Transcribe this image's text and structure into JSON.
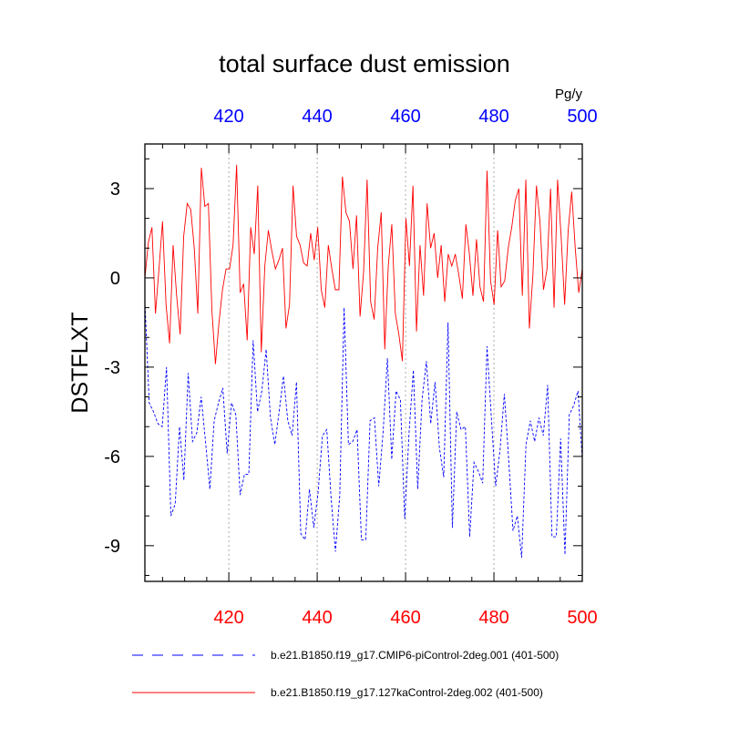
{
  "chart_data": {
    "type": "line",
    "title": "total surface dust emission",
    "ylabel": "DSTFLXT",
    "units": "Pg/y",
    "xlim": [
      401,
      500
    ],
    "ylim": [
      -10.2,
      4.5
    ],
    "x_ticks": [
      420,
      440,
      460,
      480,
      500
    ],
    "y_ticks": [
      3,
      0,
      -3,
      -6,
      -9
    ],
    "y_tick_labels": [
      "3",
      "0",
      "-3",
      "-6",
      "-9"
    ],
    "grid_x": [
      420,
      440,
      460,
      480
    ],
    "series": [
      {
        "name": "b.e21.B1850.f19_g17.CMIP6-piControl-2deg.001 (401-500)",
        "color": "#0000ff",
        "style": "dashed",
        "values": [
          -0.8,
          -4.2,
          -4.5,
          -4.9,
          -5.0,
          -3.0,
          -8.0,
          -7.6,
          -5.0,
          -6.8,
          -3.2,
          -5.5,
          -5.2,
          -4.0,
          -5.5,
          -7.1,
          -4.8,
          -4.2,
          -3.7,
          -5.9,
          -4.2,
          -4.6,
          -7.3,
          -6.6,
          -6.6,
          -2.1,
          -4.5,
          -3.8,
          -2.4,
          -4.7,
          -5.6,
          -4.5,
          -3.3,
          -4.8,
          -5.3,
          -3.5,
          -8.6,
          -8.8,
          -7.1,
          -8.4,
          -7.2,
          -5.3,
          -5.1,
          -7.4,
          -9.2,
          -7.3,
          -1.0,
          -5.6,
          -5.5,
          -5.1,
          -8.8,
          -8.8,
          -4.8,
          -4.7,
          -7.0,
          -5.2,
          -2.7,
          -6.1,
          -3.8,
          -4.1,
          -8.1,
          -5.2,
          -3.1,
          -7.1,
          -4.1,
          -2.8,
          -4.9,
          -3.5,
          -5.7,
          -6.7,
          -1.5,
          -8.4,
          -4.5,
          -5.1,
          -5.0,
          -8.7,
          -6.2,
          -6.5,
          -6.9,
          -2.3,
          -4.7,
          -7.0,
          -5.8,
          -3.9,
          -6.1,
          -8.5,
          -8.0,
          -9.4,
          -5.6,
          -4.8,
          -5.5,
          -4.7,
          -5.3,
          -3.6,
          -8.7,
          -8.7,
          -5.4,
          -9.3,
          -4.6,
          -4.3,
          -3.8,
          -6.1
        ]
      },
      {
        "name": "b.e21.B1850.f19_g17.127kaControl-2deg.002 (401-500)",
        "color": "#ff0000",
        "style": "solid",
        "values": [
          0.0,
          1.2,
          1.7,
          -1.2,
          0.3,
          1.9,
          -0.9,
          -2.2,
          1.1,
          -0.6,
          -1.9,
          1.4,
          2.5,
          2.3,
          1.0,
          -1.2,
          3.7,
          2.4,
          2.5,
          -1.1,
          -2.9,
          -1.5,
          -0.4,
          0.3,
          0.3,
          1.1,
          3.8,
          -0.5,
          -0.2,
          -2.1,
          1.7,
          0.8,
          3.1,
          -2.5,
          0.4,
          1.6,
          0.9,
          0.3,
          0.6,
          1.0,
          -1.7,
          -0.9,
          3.1,
          1.4,
          1.1,
          0.5,
          0.4,
          1.5,
          0.6,
          1.7,
          -0.4,
          -1.0,
          1.1,
          0.3,
          -0.4,
          -0.4,
          3.4,
          2.2,
          1.9,
          0.3,
          2.1,
          -1.3,
          0.2,
          3.3,
          -0.8,
          -1.4,
          1.0,
          2.2,
          -2.4,
          0.4,
          1.8,
          -1.2,
          -1.9,
          -2.8,
          2.0,
          0.4,
          3.1,
          -1.8,
          1.1,
          -0.6,
          2.5,
          1.0,
          1.5,
          0.0,
          1.1,
          -0.8,
          0.8,
          0.4,
          0.8,
          0.1,
          -0.7,
          1.8,
          0.8,
          -0.6,
          1.3,
          -0.3,
          -0.8,
          3.6,
          -0.1,
          -0.9,
          1.6,
          -0.3,
          -0.1,
          1.0,
          1.7,
          2.6,
          3.0,
          -0.6,
          3.3,
          -1.7,
          0.1,
          3.1,
          1.9,
          -0.4,
          0.3,
          3.0,
          -1.0,
          3.3,
          1.4,
          -0.9,
          1.6,
          2.9,
          1.0,
          -0.5,
          0.3
        ]
      }
    ]
  },
  "colors": {
    "bottom_axis": "#ff0000",
    "top_axis": "#0000ff",
    "grid": "#aaaaaa"
  }
}
